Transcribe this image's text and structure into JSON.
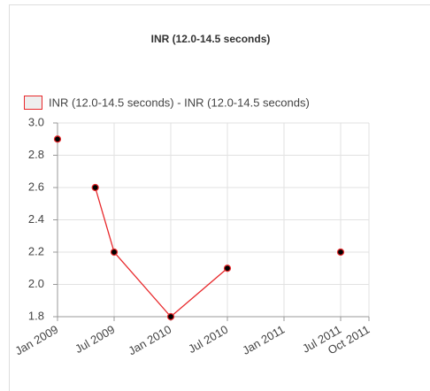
{
  "chart_data": {
    "type": "line",
    "title": "INR (12.0-14.5 seconds)",
    "x": [
      "2009-01",
      null,
      "2009-05",
      "2009-07",
      "2010-01",
      "2010-07",
      null,
      "2011-07"
    ],
    "series": [
      {
        "name": "INR (12.0-14.5 seconds) - INR (12.0-14.5 seconds)",
        "color": "#e8282b",
        "values": [
          2.9,
          null,
          2.6,
          2.2,
          1.8,
          2.1,
          null,
          2.2
        ]
      }
    ],
    "xlim": [
      "2009-01",
      "2011-10"
    ],
    "xticks": [
      {
        "value": "2009-01",
        "label": "Jan 2009"
      },
      {
        "value": "2009-07",
        "label": "Jul 2009"
      },
      {
        "value": "2010-01",
        "label": "Jan 2010"
      },
      {
        "value": "2010-07",
        "label": "Jul 2010"
      },
      {
        "value": "2011-01",
        "label": "Jan 2011"
      },
      {
        "value": "2011-07",
        "label": "Jul 2011"
      },
      {
        "value": "2011-10",
        "label": "Oct 2011"
      }
    ],
    "ylim": [
      1.8,
      3.0
    ],
    "yticks": [
      {
        "value": 1.8,
        "label": "1.8"
      },
      {
        "value": 2.0,
        "label": "2.0"
      },
      {
        "value": 2.2,
        "label": "2.2"
      },
      {
        "value": 2.4,
        "label": "2.4"
      },
      {
        "value": 2.6,
        "label": "2.6"
      },
      {
        "value": 2.8,
        "label": "2.8"
      },
      {
        "value": 3.0,
        "label": "3.0"
      }
    ],
    "grid": true,
    "legend": "top-left"
  }
}
